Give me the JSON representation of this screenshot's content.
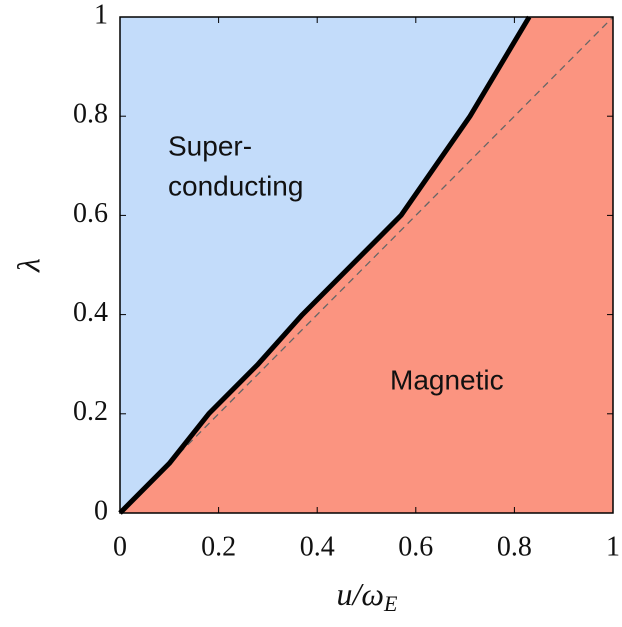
{
  "chart_data": {
    "type": "phase_diagram",
    "xlabel": {
      "main": "u/ω",
      "sub": "E"
    },
    "ylabel": "λ",
    "xlim": [
      0,
      1
    ],
    "ylim": [
      0,
      1
    ],
    "xticks": [
      0,
      0.2,
      0.4,
      0.6,
      0.8,
      1
    ],
    "yticks": [
      0,
      0.2,
      0.4,
      0.6,
      0.8,
      1
    ],
    "boundary": {
      "color": "#000000",
      "x": [
        0,
        0.1,
        0.18,
        0.28,
        0.37,
        0.47,
        0.57,
        0.64,
        0.71,
        0.77,
        0.83
      ],
      "y": [
        0,
        0.1,
        0.2,
        0.3,
        0.4,
        0.5,
        0.6,
        0.7,
        0.8,
        0.9,
        1
      ]
    },
    "reference_line": {
      "color": "#666666",
      "x": [
        0,
        1
      ],
      "y": [
        0,
        1
      ]
    },
    "regions": [
      {
        "label_lines": [
          "Super-",
          "conducting"
        ],
        "color": "#c3dcfa"
      },
      {
        "label_lines": [
          "Magnetic"
        ],
        "color": "#fb9480"
      }
    ]
  }
}
